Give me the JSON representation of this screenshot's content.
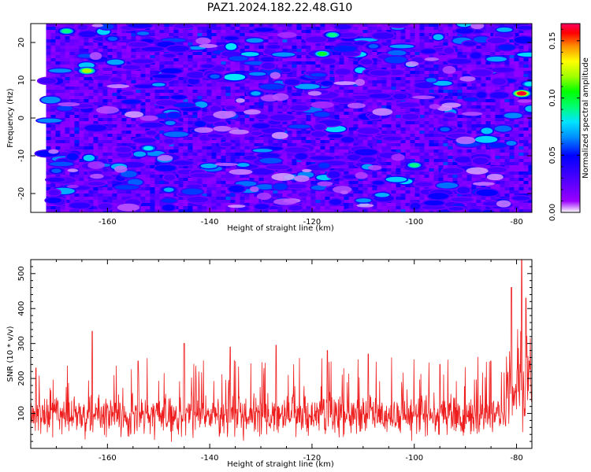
{
  "title": "PAZ1.2024.182.22.48.G10",
  "chart_data": [
    {
      "type": "heatmap",
      "xlabel": "Height of straight line (km)",
      "ylabel": "Frequency (Hz)",
      "xlim": [
        -175,
        -77
      ],
      "ylim": [
        -25,
        25
      ],
      "xticks": [
        -160,
        -140,
        -120,
        -100,
        -80
      ],
      "yticks": [
        -20,
        -10,
        0,
        10,
        20
      ],
      "data_x_start": -172,
      "colorbar": {
        "label": "Normalized spectral amplitude",
        "range": [
          0,
          0.165
        ],
        "ticks": [
          "0.00",
          "0.05",
          "0.10",
          "0.15"
        ],
        "tick_values": [
          0,
          0.05,
          0.1,
          0.15
        ]
      },
      "hotspots": [
        {
          "x": -168,
          "y": 23,
          "v": 0.09
        },
        {
          "x": -164,
          "y": 12.5,
          "v": 0.12
        },
        {
          "x": -152,
          "y": -8,
          "v": 0.08
        },
        {
          "x": -148,
          "y": -19,
          "v": 0.07
        },
        {
          "x": -131,
          "y": 6.5,
          "v": 0.07
        },
        {
          "x": -116,
          "y": 22,
          "v": 0.09
        },
        {
          "x": -118,
          "y": 17,
          "v": 0.1
        },
        {
          "x": -100,
          "y": -12.5,
          "v": 0.09
        },
        {
          "x": -94,
          "y": -3,
          "v": 0.06
        },
        {
          "x": -79,
          "y": 6.5,
          "v": 0.16
        },
        {
          "x": -77.5,
          "y": 9,
          "v": 0.08
        },
        {
          "x": -108,
          "y": 19,
          "v": 0.06
        },
        {
          "x": -139,
          "y": 11,
          "v": 0.06
        },
        {
          "x": -159,
          "y": 21,
          "v": 0.06
        },
        {
          "x": -170,
          "y": -14,
          "v": 0.06
        }
      ],
      "grid": false
    },
    {
      "type": "line",
      "xlabel": "Height of straight line (km)",
      "ylabel": "SNR (10 * v/v)",
      "xlim": [
        -175,
        -77
      ],
      "ylim": [
        0,
        540
      ],
      "xticks": [
        -160,
        -140,
        -120,
        -100,
        -80
      ],
      "yticks": [
        100,
        200,
        300,
        400,
        500
      ],
      "series": [
        {
          "color": "#ee1c1c",
          "baseline": 95,
          "spread": 55,
          "peaks": [
            {
              "x": -174,
              "y": 230
            },
            {
              "x": -163,
              "y": 335
            },
            {
              "x": -154,
              "y": 250
            },
            {
              "x": -145,
              "y": 300
            },
            {
              "x": -136,
              "y": 290
            },
            {
              "x": -127,
              "y": 295
            },
            {
              "x": -117,
              "y": 280
            },
            {
              "x": -109,
              "y": 270
            },
            {
              "x": -95,
              "y": 240
            },
            {
              "x": -85,
              "y": 250
            },
            {
              "x": -81,
              "y": 460
            },
            {
              "x": -79,
              "y": 540
            },
            {
              "x": -78.2,
              "y": 430
            }
          ]
        }
      ],
      "grid": false
    }
  ]
}
